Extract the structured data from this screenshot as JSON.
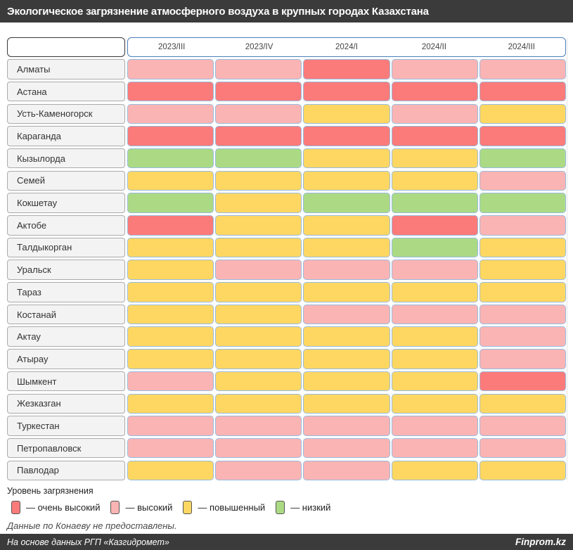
{
  "title_bar": {
    "title": "Экологическое загрязнение атмосферного воздуха в крупных городах Казахстана"
  },
  "chart_data": {
    "type": "heatmap",
    "title": "Экологическое загрязнение атмосферного воздуха в крупных городах Казахстана",
    "columns": [
      "2023/III",
      "2023/IV",
      "2024/I",
      "2024/II",
      "2024/III"
    ],
    "legend_title": "Уровень загрязнения",
    "legend_position": "bottom-left",
    "levels": [
      {
        "key": "very_high",
        "label": "— очень высокий",
        "color": "#FB7B7B"
      },
      {
        "key": "high",
        "label": "— высокий",
        "color": "#FBB4B4"
      },
      {
        "key": "elevated",
        "label": "— повышенный",
        "color": "#FED763"
      },
      {
        "key": "low",
        "label": "— низкий",
        "color": "#ACDA84"
      }
    ],
    "rows": [
      {
        "city": "Алматы",
        "values": [
          "high",
          "high",
          "very_high",
          "high",
          "high"
        ]
      },
      {
        "city": "Астана",
        "values": [
          "very_high",
          "very_high",
          "very_high",
          "very_high",
          "very_high"
        ]
      },
      {
        "city": "Усть-Каменогорск",
        "values": [
          "high",
          "high",
          "elevated",
          "high",
          "elevated"
        ]
      },
      {
        "city": "Караганда",
        "values": [
          "very_high",
          "very_high",
          "very_high",
          "very_high",
          "very_high"
        ]
      },
      {
        "city": "Кызылорда",
        "values": [
          "low",
          "low",
          "elevated",
          "elevated",
          "low"
        ]
      },
      {
        "city": "Семей",
        "values": [
          "elevated",
          "elevated",
          "elevated",
          "elevated",
          "high"
        ]
      },
      {
        "city": "Кокшетау",
        "values": [
          "low",
          "elevated",
          "low",
          "low",
          "low"
        ]
      },
      {
        "city": "Актобе",
        "values": [
          "very_high",
          "elevated",
          "elevated",
          "very_high",
          "high"
        ]
      },
      {
        "city": "Талдыкорган",
        "values": [
          "elevated",
          "elevated",
          "elevated",
          "low",
          "elevated"
        ]
      },
      {
        "city": "Уральск",
        "values": [
          "elevated",
          "high",
          "high",
          "high",
          "elevated"
        ]
      },
      {
        "city": "Тараз",
        "values": [
          "elevated",
          "elevated",
          "elevated",
          "elevated",
          "elevated"
        ]
      },
      {
        "city": "Костанай",
        "values": [
          "elevated",
          "elevated",
          "high",
          "high",
          "high"
        ]
      },
      {
        "city": "Актау",
        "values": [
          "elevated",
          "elevated",
          "elevated",
          "elevated",
          "high"
        ]
      },
      {
        "city": "Атырау",
        "values": [
          "elevated",
          "elevated",
          "elevated",
          "elevated",
          "high"
        ]
      },
      {
        "city": "Шымкент",
        "values": [
          "high",
          "elevated",
          "elevated",
          "elevated",
          "very_high"
        ]
      },
      {
        "city": "Жезказган",
        "values": [
          "elevated",
          "elevated",
          "elevated",
          "elevated",
          "elevated"
        ]
      },
      {
        "city": "Туркестан",
        "values": [
          "high",
          "high",
          "high",
          "high",
          "high"
        ]
      },
      {
        "city": "Петропавловск",
        "values": [
          "high",
          "high",
          "high",
          "high",
          "high"
        ]
      },
      {
        "city": "Павлодар",
        "values": [
          "elevated",
          "high",
          "high",
          "elevated",
          "elevated"
        ]
      }
    ]
  },
  "note": "Данные по Конаеву не предоставлены.",
  "footer": {
    "source": "На основе данных РГП «Казгидромет»",
    "brand": "Finprom.kz"
  }
}
